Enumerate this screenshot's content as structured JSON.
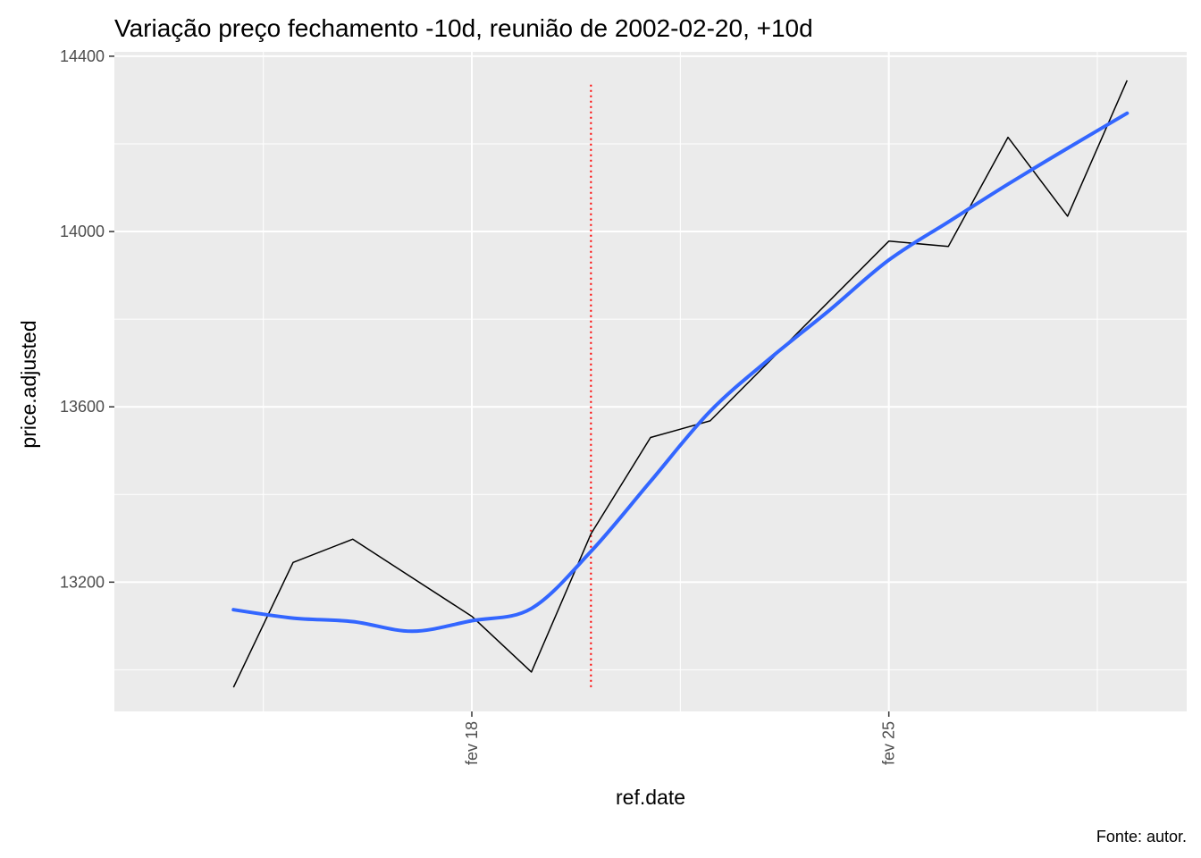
{
  "chart_data": {
    "type": "line",
    "title": "Variação preço fechamento -10d, reunião de 2002-02-20, +10d",
    "xlabel": "ref.date",
    "ylabel": "price.adjusted",
    "caption": "Fonte: autor.",
    "x_ticks": [
      {
        "date": "2002-02-18",
        "label": "fev 18"
      },
      {
        "date": "2002-02-25",
        "label": "fev 25"
      }
    ],
    "y_ticks": [
      13200,
      13600,
      14000,
      14400
    ],
    "xlim": [
      "2002-02-12",
      "2002-03-02"
    ],
    "ylim": [
      12905,
      14410
    ],
    "grid": true,
    "legend": "none",
    "series": [
      {
        "type": "line",
        "color": "#000000",
        "points": [
          {
            "x": "2002-02-14",
            "y": 12960
          },
          {
            "x": "2002-02-15",
            "y": 13245
          },
          {
            "x": "2002-02-16",
            "y": 13298
          },
          {
            "x": "2002-02-18",
            "y": 13122
          },
          {
            "x": "2002-02-19",
            "y": 12995
          },
          {
            "x": "2002-02-20",
            "y": 13310
          },
          {
            "x": "2002-02-21",
            "y": 13530
          },
          {
            "x": "2002-02-22",
            "y": 13568
          },
          {
            "x": "2002-02-25",
            "y": 13978
          },
          {
            "x": "2002-02-26",
            "y": 13966
          },
          {
            "x": "2002-02-27",
            "y": 14215
          },
          {
            "x": "2002-02-28",
            "y": 14035
          },
          {
            "x": "2002-03-01",
            "y": 14345
          }
        ]
      },
      {
        "type": "smooth",
        "color": "#3366ff",
        "points": [
          {
            "x": "2002-02-14",
            "y": 13137
          },
          {
            "x": "2002-02-15",
            "y": 13118
          },
          {
            "x": "2002-02-16",
            "y": 13110
          },
          {
            "x": "2002-02-17",
            "y": 13088
          },
          {
            "x": "2002-02-18",
            "y": 13112
          },
          {
            "x": "2002-02-19",
            "y": 13140
          },
          {
            "x": "2002-02-20",
            "y": 13270
          },
          {
            "x": "2002-02-21",
            "y": 13430
          },
          {
            "x": "2002-02-22",
            "y": 13590
          },
          {
            "x": "2002-02-23",
            "y": 13710
          },
          {
            "x": "2002-02-24",
            "y": 13820
          },
          {
            "x": "2002-02-25",
            "y": 13935
          },
          {
            "x": "2002-02-26",
            "y": 14022
          },
          {
            "x": "2002-02-27",
            "y": 14108
          },
          {
            "x": "2002-02-28",
            "y": 14190
          },
          {
            "x": "2002-03-01",
            "y": 14270
          }
        ]
      }
    ],
    "vline": {
      "x": "2002-02-20",
      "color": "#ff0000",
      "style": "dotted",
      "y_from": 12960,
      "y_to": 14335
    }
  }
}
